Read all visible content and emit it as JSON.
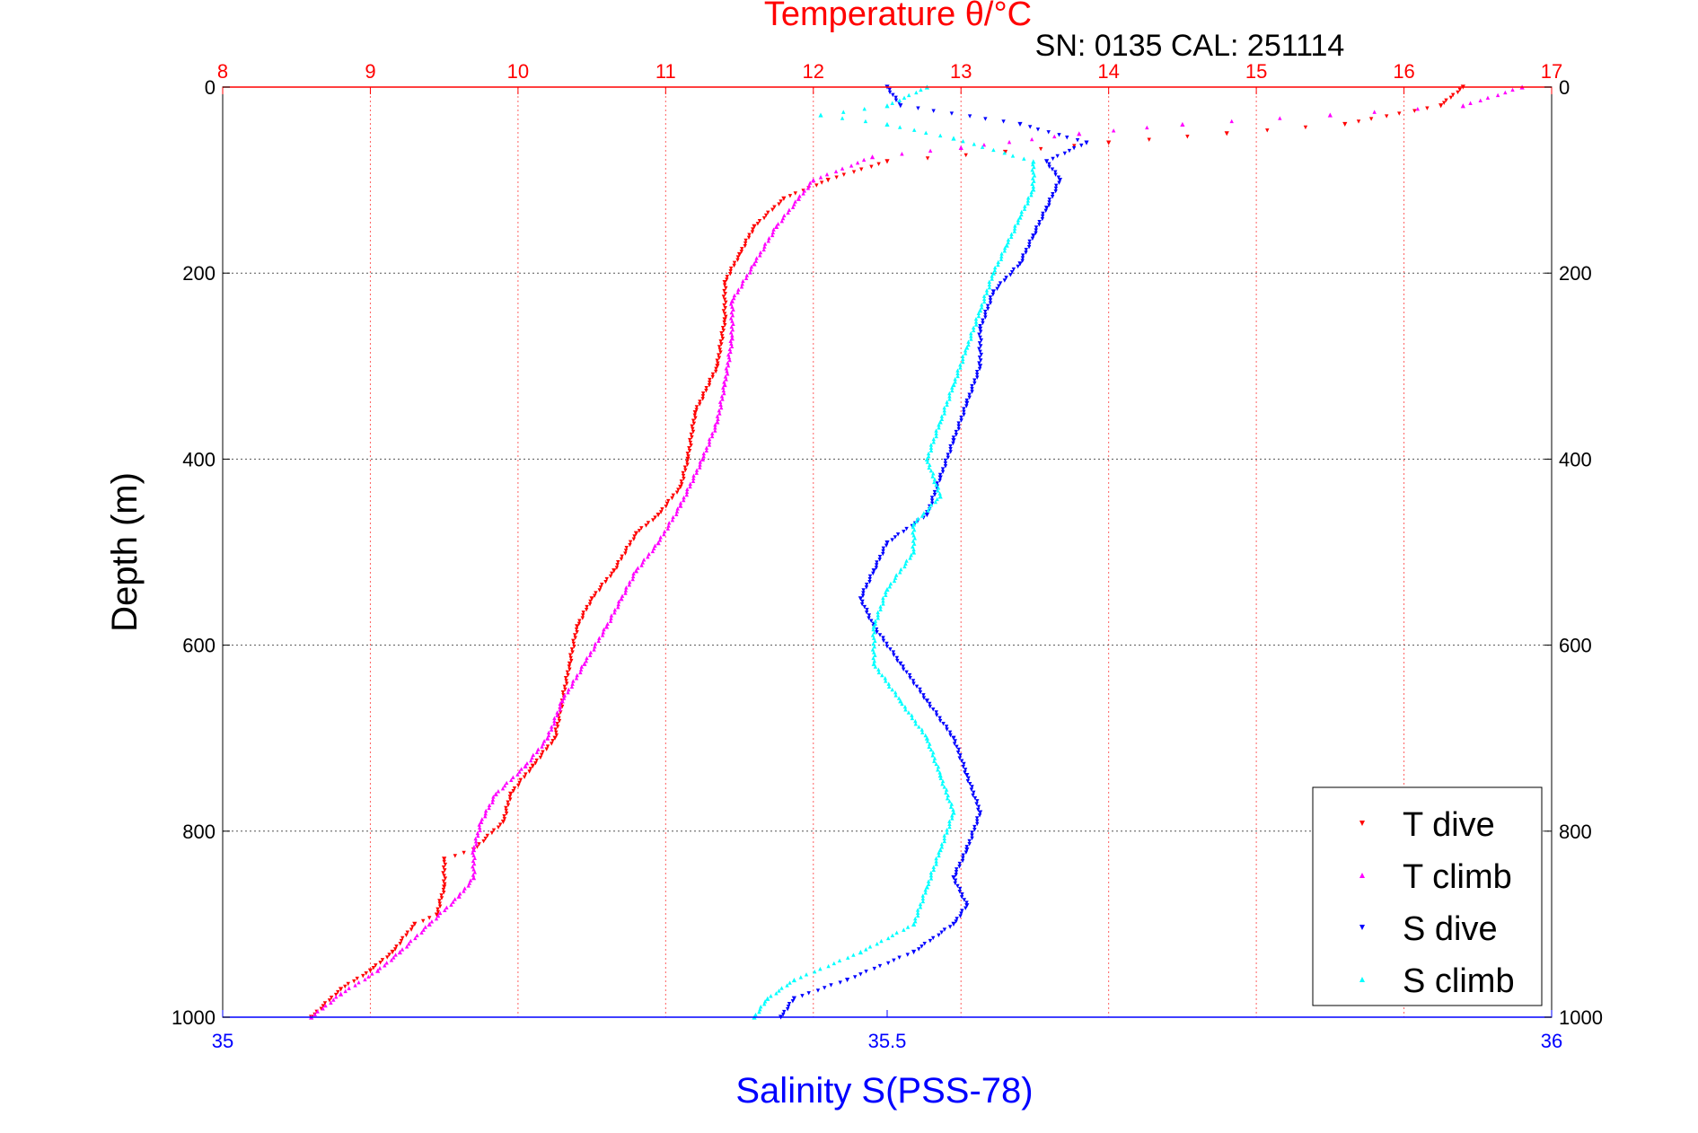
{
  "chart_data": {
    "type": "scatter",
    "title": "Temperature θ/°C",
    "subtitle": "SN: 0135  CAL: 251114",
    "ylabel": "Depth (m)",
    "xlabel": "Salinity S(PSS-78)",
    "ylim": [
      1000,
      0
    ],
    "yticks": [
      "0",
      "200",
      "400",
      "600",
      "800",
      "1000"
    ],
    "x_top": {
      "lim": [
        8,
        17
      ],
      "ticks": [
        "8",
        "9",
        "10",
        "11",
        "12",
        "13",
        "14",
        "15",
        "16",
        "17"
      ]
    },
    "x_bottom": {
      "lim": [
        35,
        36
      ],
      "ticks": [
        "35",
        "35.5",
        "36"
      ]
    },
    "grid": true,
    "legend_position": "bottom-right",
    "series": [
      {
        "name": "T dive",
        "axis": "top",
        "color": "#ff0000",
        "marker": "triangle-down",
        "points": [
          [
            16.4,
            0
          ],
          [
            16.25,
            20
          ],
          [
            15.6,
            40
          ],
          [
            14.8,
            50
          ],
          [
            14.0,
            60
          ],
          [
            13.3,
            70
          ],
          [
            12.5,
            80
          ],
          [
            12.1,
            100
          ],
          [
            11.8,
            120
          ],
          [
            11.6,
            150
          ],
          [
            11.5,
            180
          ],
          [
            11.4,
            210
          ],
          [
            11.4,
            250
          ],
          [
            11.35,
            300
          ],
          [
            11.2,
            350
          ],
          [
            11.15,
            400
          ],
          [
            11.1,
            430
          ],
          [
            10.95,
            460
          ],
          [
            10.8,
            480
          ],
          [
            10.65,
            520
          ],
          [
            10.5,
            550
          ],
          [
            10.4,
            580
          ],
          [
            10.35,
            620
          ],
          [
            10.3,
            660
          ],
          [
            10.25,
            700
          ],
          [
            10.1,
            730
          ],
          [
            9.95,
            760
          ],
          [
            9.9,
            790
          ],
          [
            9.7,
            820
          ],
          [
            9.5,
            830
          ],
          [
            9.5,
            860
          ],
          [
            9.45,
            890
          ],
          [
            9.3,
            900
          ],
          [
            9.15,
            930
          ],
          [
            9.0,
            950
          ],
          [
            8.8,
            970
          ],
          [
            8.6,
            1000
          ]
        ]
      },
      {
        "name": "T climb",
        "axis": "top",
        "color": "#ff00ff",
        "marker": "triangle-up",
        "points": [
          [
            16.8,
            0
          ],
          [
            16.4,
            20
          ],
          [
            15.5,
            30
          ],
          [
            14.5,
            40
          ],
          [
            13.8,
            50
          ],
          [
            13.0,
            65
          ],
          [
            12.4,
            75
          ],
          [
            12.0,
            100
          ],
          [
            11.9,
            120
          ],
          [
            11.75,
            150
          ],
          [
            11.6,
            190
          ],
          [
            11.45,
            230
          ],
          [
            11.45,
            270
          ],
          [
            11.4,
            320
          ],
          [
            11.35,
            360
          ],
          [
            11.25,
            400
          ],
          [
            11.1,
            450
          ],
          [
            10.95,
            490
          ],
          [
            10.8,
            520
          ],
          [
            10.7,
            550
          ],
          [
            10.6,
            580
          ],
          [
            10.45,
            620
          ],
          [
            10.3,
            660
          ],
          [
            10.2,
            700
          ],
          [
            10.05,
            730
          ],
          [
            9.85,
            760
          ],
          [
            9.75,
            790
          ],
          [
            9.7,
            820
          ],
          [
            9.7,
            850
          ],
          [
            9.6,
            870
          ],
          [
            9.4,
            900
          ],
          [
            9.2,
            930
          ],
          [
            9.05,
            950
          ],
          [
            8.8,
            975
          ],
          [
            8.6,
            1000
          ]
        ]
      },
      {
        "name": "S dive",
        "axis": "bottom",
        "color": "#0000ff",
        "marker": "triangle-down",
        "points": [
          [
            35.5,
            0
          ],
          [
            35.51,
            20
          ],
          [
            35.6,
            40
          ],
          [
            35.65,
            60
          ],
          [
            35.62,
            80
          ],
          [
            35.63,
            100
          ],
          [
            35.62,
            130
          ],
          [
            35.61,
            160
          ],
          [
            35.6,
            190
          ],
          [
            35.58,
            220
          ],
          [
            35.57,
            260
          ],
          [
            35.57,
            300
          ],
          [
            35.56,
            340
          ],
          [
            35.55,
            380
          ],
          [
            35.54,
            420
          ],
          [
            35.53,
            460
          ],
          [
            35.5,
            490
          ],
          [
            35.49,
            520
          ],
          [
            35.48,
            550
          ],
          [
            35.49,
            580
          ],
          [
            35.51,
            620
          ],
          [
            35.53,
            660
          ],
          [
            35.55,
            700
          ],
          [
            35.56,
            740
          ],
          [
            35.57,
            780
          ],
          [
            35.56,
            820
          ],
          [
            35.55,
            850
          ],
          [
            35.56,
            880
          ],
          [
            35.55,
            900
          ],
          [
            35.52,
            930
          ],
          [
            35.47,
            960
          ],
          [
            35.43,
            980
          ],
          [
            35.42,
            1000
          ]
        ]
      },
      {
        "name": "S climb",
        "axis": "bottom",
        "color": "#00ffff",
        "marker": "triangle-up",
        "points": [
          [
            35.53,
            0
          ],
          [
            35.5,
            20
          ],
          [
            35.45,
            30
          ],
          [
            35.5,
            40
          ],
          [
            35.55,
            55
          ],
          [
            35.61,
            80
          ],
          [
            35.61,
            110
          ],
          [
            35.6,
            140
          ],
          [
            35.59,
            170
          ],
          [
            35.58,
            200
          ],
          [
            35.57,
            240
          ],
          [
            35.56,
            280
          ],
          [
            35.55,
            320
          ],
          [
            35.54,
            360
          ],
          [
            35.53,
            400
          ],
          [
            35.54,
            440
          ],
          [
            35.52,
            470
          ],
          [
            35.52,
            500
          ],
          [
            35.5,
            540
          ],
          [
            35.49,
            580
          ],
          [
            35.49,
            620
          ],
          [
            35.51,
            660
          ],
          [
            35.53,
            700
          ],
          [
            35.54,
            740
          ],
          [
            35.55,
            780
          ],
          [
            35.54,
            820
          ],
          [
            35.53,
            860
          ],
          [
            35.52,
            900
          ],
          [
            35.48,
            930
          ],
          [
            35.43,
            960
          ],
          [
            35.41,
            980
          ],
          [
            35.4,
            1000
          ]
        ]
      }
    ]
  }
}
